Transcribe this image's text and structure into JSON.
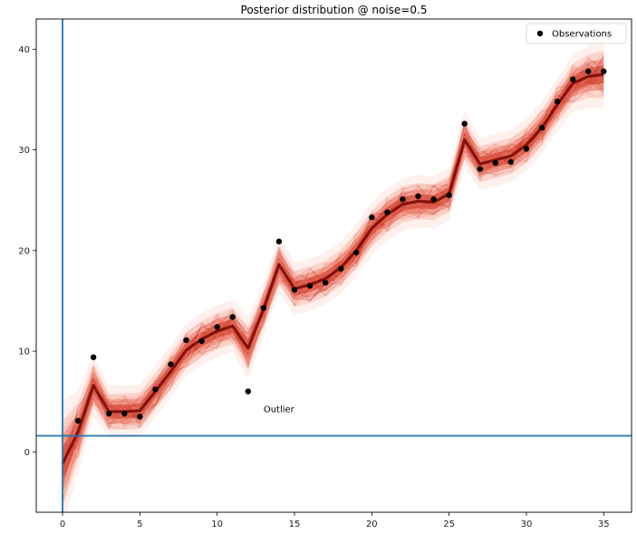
{
  "chart_data": {
    "type": "line",
    "title": "Posterior distribution @ noise=0.5",
    "xlabel": "",
    "ylabel": "",
    "xlim": [
      -1.7,
      36.8
    ],
    "ylim": [
      -6,
      43
    ],
    "xticks": [
      0,
      5,
      10,
      15,
      20,
      25,
      30,
      35
    ],
    "yticks": [
      0,
      10,
      20,
      30,
      40
    ],
    "grid": false,
    "legend_position": "top-right",
    "series": [
      {
        "name": "Observations",
        "kind": "scatter",
        "color": "#000000",
        "x": [
          1,
          2,
          3,
          4,
          5,
          6,
          7,
          8,
          9,
          10,
          11,
          12,
          13,
          14,
          15,
          16,
          17,
          18,
          19,
          20,
          21,
          22,
          23,
          24,
          25,
          26,
          27,
          28,
          29,
          30,
          31,
          32,
          33,
          34,
          35
        ],
        "y": [
          3.1,
          9.4,
          3.8,
          3.8,
          3.5,
          6.2,
          8.7,
          11.1,
          11.0,
          12.4,
          13.4,
          6.0,
          14.3,
          20.9,
          16.1,
          16.5,
          16.8,
          18.2,
          19.8,
          23.3,
          23.8,
          25.1,
          25.4,
          25.1,
          25.5,
          32.6,
          28.1,
          28.7,
          28.8,
          30.1,
          32.2,
          34.8,
          37.0,
          37.8,
          37.8
        ]
      },
      {
        "kind": "posterior-band",
        "color": "#cc1f0e",
        "x": [
          0,
          1,
          2,
          3,
          4,
          5,
          6,
          7,
          8,
          9,
          10,
          11,
          12,
          13,
          14,
          15,
          16,
          17,
          18,
          19,
          20,
          21,
          22,
          23,
          24,
          25,
          26,
          27,
          28,
          29,
          30,
          31,
          32,
          33,
          34,
          35
        ],
        "y": [
          -1.2,
          2.0,
          6.6,
          4.0,
          4.0,
          4.1,
          6.0,
          8.0,
          10.1,
          11.2,
          12.0,
          12.5,
          10.3,
          14.2,
          18.6,
          16.2,
          16.6,
          17.2,
          18.3,
          20.0,
          22.2,
          23.6,
          24.6,
          24.9,
          24.8,
          25.6,
          31.0,
          28.6,
          29.0,
          29.4,
          30.5,
          32.2,
          34.5,
          36.6,
          37.3,
          37.5
        ],
        "spread": [
          2.4,
          1.6,
          1.2,
          1.0,
          1.0,
          1.0,
          1.0,
          1.0,
          1.0,
          1.0,
          1.0,
          1.0,
          1.2,
          1.0,
          1.1,
          1.0,
          1.0,
          1.0,
          1.0,
          1.0,
          1.0,
          1.0,
          1.0,
          1.0,
          1.0,
          1.0,
          1.1,
          1.0,
          1.0,
          1.0,
          1.0,
          1.0,
          1.0,
          1.1,
          1.2,
          1.3
        ]
      }
    ],
    "reference_lines": [
      {
        "orientation": "vertical",
        "value": 0,
        "color": "#1f77b4"
      },
      {
        "orientation": "horizontal",
        "value": 1.6,
        "color": "#1f77b4"
      }
    ],
    "annotations": [
      {
        "text": "Outlier",
        "x": 13,
        "y": 4.2
      }
    ]
  }
}
